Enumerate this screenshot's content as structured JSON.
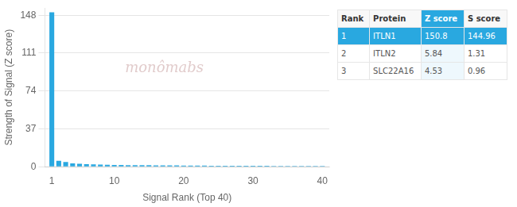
{
  "chart_data": {
    "type": "bar",
    "x": [
      1,
      2,
      3,
      4,
      5,
      6,
      7,
      8,
      9,
      10,
      11,
      12,
      13,
      14,
      15,
      16,
      17,
      18,
      19,
      20,
      21,
      22,
      23,
      24,
      25,
      26,
      27,
      28,
      29,
      30,
      31,
      32,
      33,
      34,
      35,
      36,
      37,
      38,
      39,
      40
    ],
    "values": [
      150.8,
      5.84,
      4.53,
      3.2,
      2.8,
      2.5,
      2.2,
      2.0,
      1.9,
      1.8,
      1.7,
      1.6,
      1.55,
      1.5,
      1.45,
      1.4,
      1.35,
      1.3,
      1.25,
      1.2,
      1.15,
      1.1,
      1.05,
      1.0,
      0.98,
      0.96,
      0.94,
      0.92,
      0.9,
      0.88,
      0.86,
      0.84,
      0.82,
      0.8,
      0.78,
      0.76,
      0.74,
      0.72,
      0.7,
      0.68
    ],
    "color": "#29a8e0",
    "xlim": [
      0,
      41
    ],
    "xticks": [
      1,
      10,
      20,
      30,
      40
    ],
    "ylim": [
      0,
      155
    ],
    "yticks": [
      0,
      37,
      74,
      111,
      148
    ],
    "x_label": "Signal Rank (Top 40)",
    "y_label": "Strength of Signal (Z score)",
    "annotations": [
      {
        "text": "monômabs"
      }
    ],
    "table": {
      "columns": [
        "Rank",
        "Protein",
        "Z score",
        "S score"
      ],
      "rows": [
        [
          "1",
          "ITLN1",
          "150.8",
          "144.96"
        ],
        [
          "2",
          "ITLN2",
          "5.84",
          "1.31"
        ],
        [
          "3",
          "SLC22A16",
          "4.53",
          "0.96"
        ]
      ]
    },
    "grid": true
  }
}
